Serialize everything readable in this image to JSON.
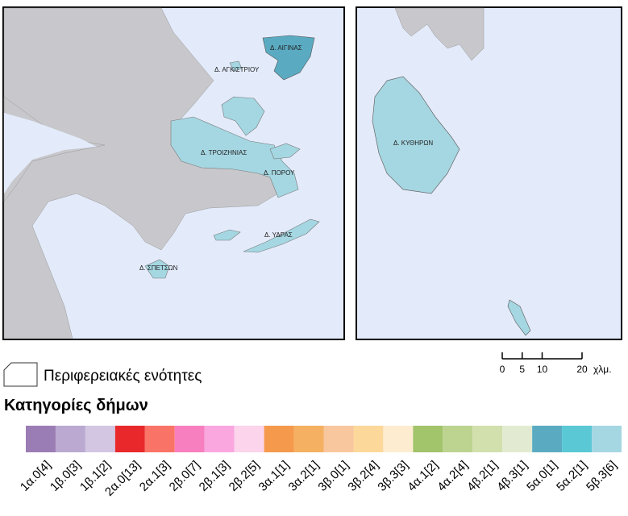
{
  "map_labels": [
    "Δ. ΑΙΓΙΝΑΣ",
    "Δ. ΑΓΚΙΣΤΡΙΟΥ",
    "Δ. ΤΡΟΙΖΗΝΙΑΣ",
    "Δ. ΠΟΡΟΥ",
    "Δ. ΥΔΡΑΣ",
    "Δ. ΣΠΕΤΣΩΝ"
  ],
  "inset_label": "Δ. ΚΥΘΗΡΩΝ",
  "scale_bar": {
    "ticks": [
      0,
      5,
      10,
      20
    ],
    "unit": "χλμ."
  },
  "boundary_legend": "Περιφερειακές ενότητες",
  "legend_title": "Κατηγορίες δήμων",
  "categories": [
    {
      "label": "1α.0[4]",
      "color": "#9b7db5"
    },
    {
      "label": "1β.0[3]",
      "color": "#bba9d1"
    },
    {
      "label": "1β.1[2]",
      "color": "#d3c6e2"
    },
    {
      "label": "2α.0[13]",
      "color": "#e8282b"
    },
    {
      "label": "2α.1[3]",
      "color": "#f97466"
    },
    {
      "label": "2β.0[7]",
      "color": "#f77fbf"
    },
    {
      "label": "2β.1[3]",
      "color": "#f9a7de"
    },
    {
      "label": "2β.2[5]",
      "color": "#fcd4ec"
    },
    {
      "label": "3α.1[1]",
      "color": "#f59a4d"
    },
    {
      "label": "3α.2[1]",
      "color": "#f5b062"
    },
    {
      "label": "3β.0[1]",
      "color": "#f8c79e"
    },
    {
      "label": "3β.2[4]",
      "color": "#fdd89b"
    },
    {
      "label": "3β.3[3]",
      "color": "#fdecd0"
    },
    {
      "label": "4α.1[2]",
      "color": "#a2c46a"
    },
    {
      "label": "4α.2[4]",
      "color": "#bcd48f"
    },
    {
      "label": "4β.2[1]",
      "color": "#d1e0ad"
    },
    {
      "label": "4β.3[1]",
      "color": "#e2ebd2"
    },
    {
      "label": "5α.0[1]",
      "color": "#5aabc2"
    },
    {
      "label": "5α.2[1]",
      "color": "#5ac8d5"
    },
    {
      "label": "5β.3[6]",
      "color": "#a5d7e2"
    }
  ]
}
